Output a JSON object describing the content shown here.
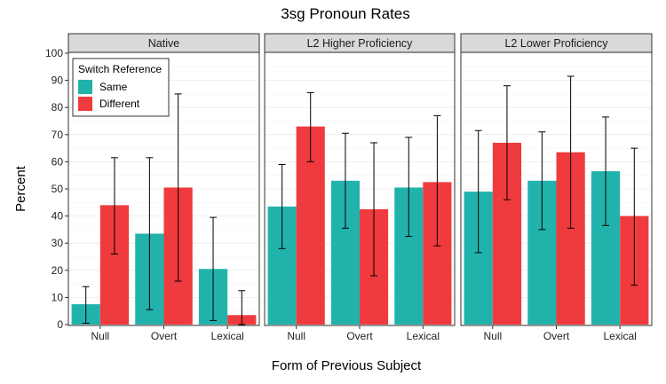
{
  "chart_data": {
    "type": "bar",
    "title": "3sg Pronoun Rates",
    "xlabel": "Form of Previous Subject",
    "ylabel": "Percent",
    "ylim": [
      0,
      100
    ],
    "yticks": [
      0,
      10,
      20,
      30,
      40,
      50,
      60,
      70,
      80,
      90,
      100
    ],
    "grid": true,
    "categories": [
      "Null",
      "Overt",
      "Lexical"
    ],
    "legend": {
      "title": "Switch Reference",
      "placement": "top-left",
      "entries": [
        "Same",
        "Different"
      ]
    },
    "colors": {
      "Same": "#21b3ab",
      "Different": "#ef3b3e"
    },
    "facets": [
      {
        "label": "Native",
        "series": [
          {
            "name": "Same",
            "values": [
              7.5,
              33.5,
              20.5
            ],
            "err_low": [
              0.5,
              5.5,
              1.5
            ],
            "err_high": [
              14,
              61.5,
              39.5
            ]
          },
          {
            "name": "Different",
            "values": [
              44,
              50.5,
              3.5
            ],
            "err_low": [
              26,
              16,
              0
            ],
            "err_high": [
              61.5,
              85,
              12.5
            ]
          }
        ]
      },
      {
        "label": "L2 Higher Proficiency",
        "series": [
          {
            "name": "Same",
            "values": [
              43.5,
              53,
              50.5
            ],
            "err_low": [
              28,
              35.5,
              32.5
            ],
            "err_high": [
              59,
              70.5,
              69
            ]
          },
          {
            "name": "Different",
            "values": [
              73,
              42.5,
              52.5
            ],
            "err_low": [
              60,
              18,
              29
            ],
            "err_high": [
              85.5,
              67,
              77
            ]
          }
        ]
      },
      {
        "label": "L2 Lower Proficiency",
        "series": [
          {
            "name": "Same",
            "values": [
              49,
              53,
              56.5
            ],
            "err_low": [
              26.5,
              35,
              36.5
            ],
            "err_high": [
              71.5,
              71,
              76.5
            ]
          },
          {
            "name": "Different",
            "values": [
              67,
              63.5,
              40
            ],
            "err_low": [
              46,
              35.5,
              14.5
            ],
            "err_high": [
              88,
              91.5,
              65
            ]
          }
        ]
      }
    ]
  }
}
